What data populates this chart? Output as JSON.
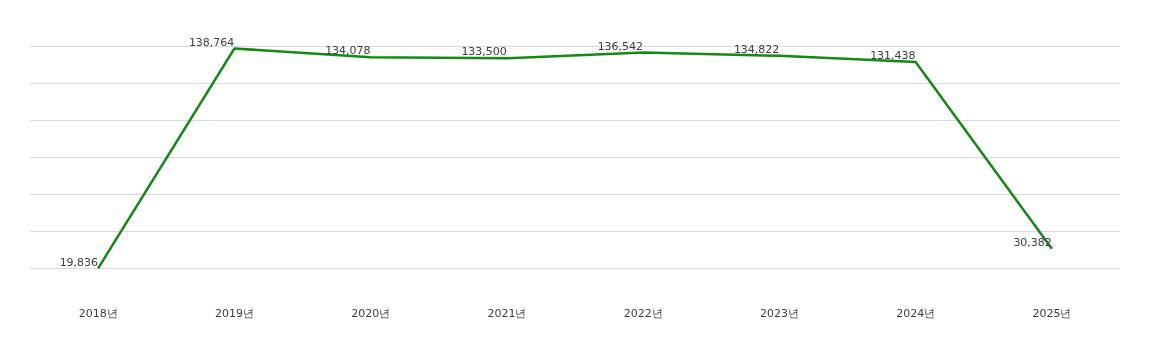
{
  "chart_data": {
    "type": "line",
    "categories": [
      "2018년",
      "2019년",
      "2020년",
      "2021년",
      "2022년",
      "2023년",
      "2024년",
      "2025년"
    ],
    "series": [
      {
        "color": "#138a13",
        "values": [
          19836,
          138764,
          134078,
          133500,
          136542,
          134822,
          131438,
          30382
        ],
        "value_labels": [
          "19,836",
          "138,764",
          "134,078",
          "133,500",
          "136,542",
          "134,822",
          "131,438",
          "30,382"
        ]
      }
    ],
    "tick_labels": "x",
    "grid": "y",
    "legend": false,
    "marker": "none",
    "line_style": "solid"
  }
}
